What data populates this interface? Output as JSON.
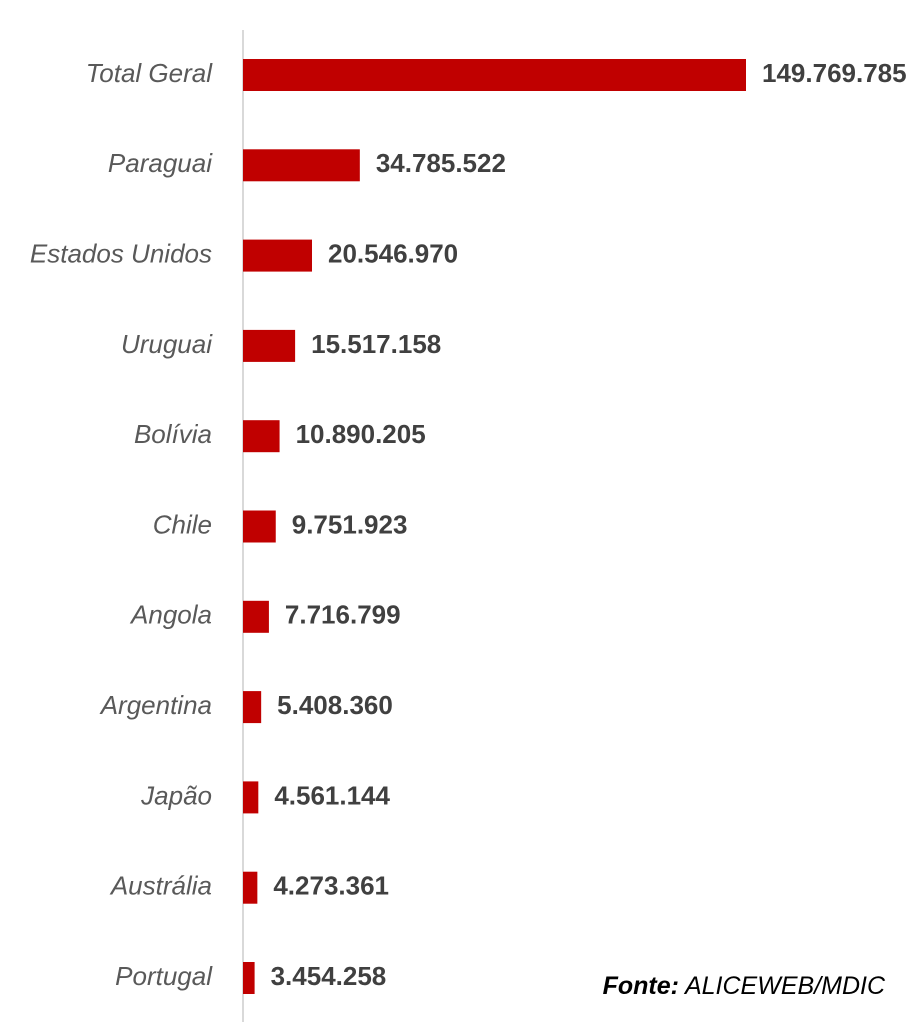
{
  "chart_data": {
    "type": "bar",
    "orientation": "horizontal",
    "categories": [
      "Total Geral",
      "Paraguai",
      "Estados Unidos",
      "Uruguai",
      "Bolívia",
      "Chile",
      "Angola",
      "Argentina",
      "Japão",
      "Austrália",
      "Portugal"
    ],
    "values": [
      149769785,
      34785522,
      20546970,
      15517158,
      10890205,
      9751923,
      7716799,
      5408360,
      4561144,
      4273361,
      3454258
    ],
    "value_labels": [
      "149.769.785",
      "34.785.522",
      "20.546.970",
      "15.517.158",
      "10.890.205",
      "9.751.923",
      "7.716.799",
      "5.408.360",
      "4.561.144",
      "4.273.361",
      "3.454.258"
    ],
    "bar_color": "#c00000",
    "axis_color": "#d9d9d9",
    "grid": false,
    "legend": "none"
  },
  "source": {
    "label": "Fonte:",
    "text": " ALICEWEB/MDIC"
  }
}
